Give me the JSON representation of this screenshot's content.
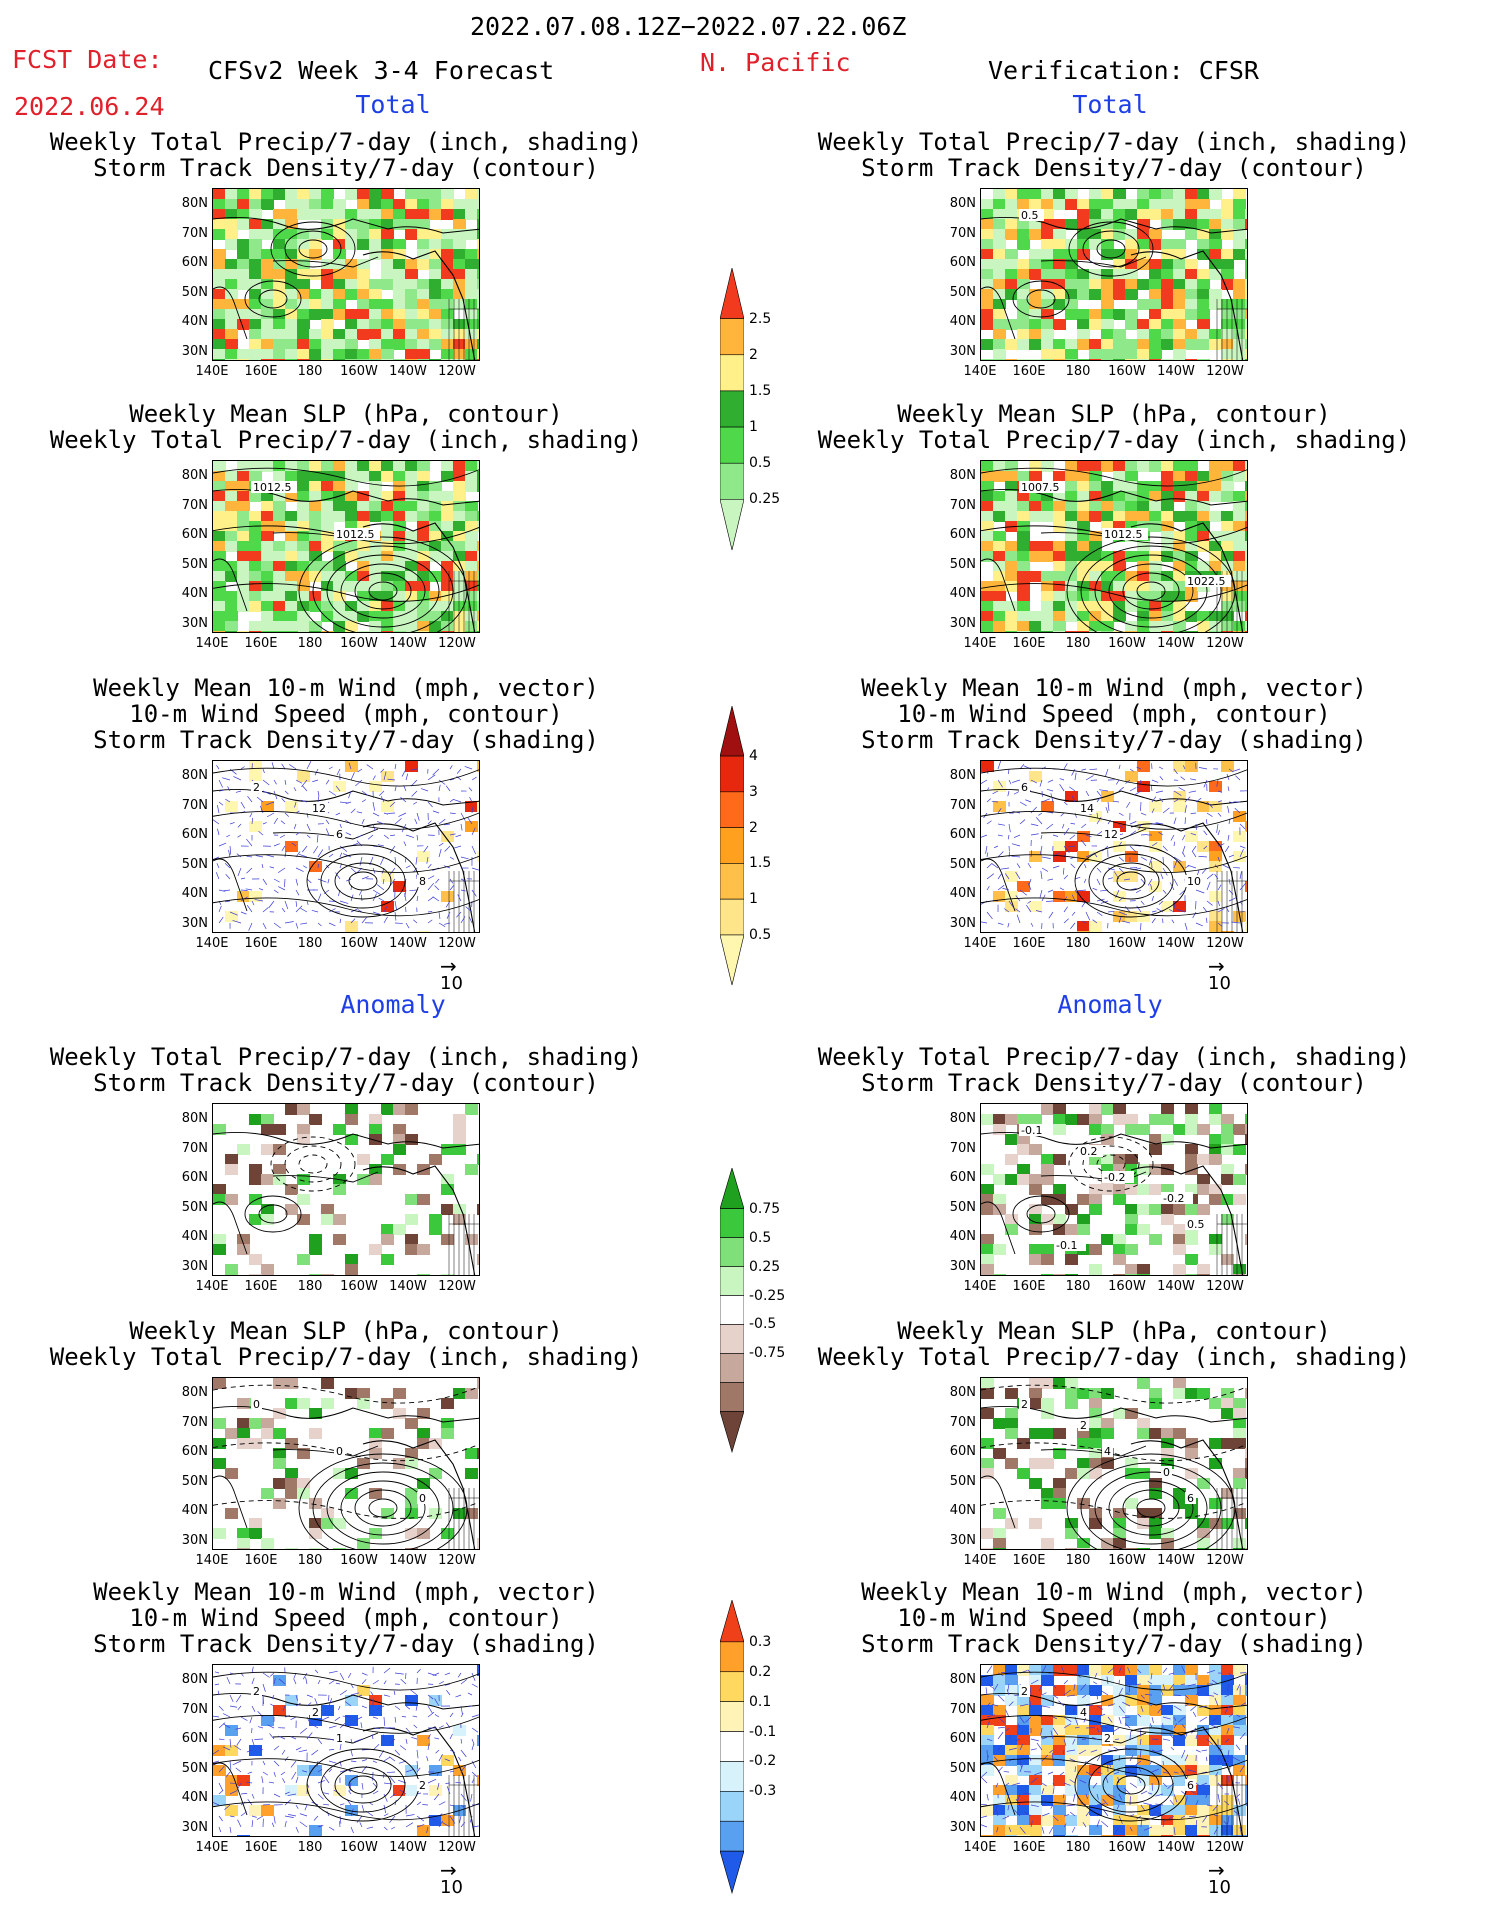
{
  "header": {
    "date_range": "2022.07.08.12Z−2022.07.22.06Z",
    "fcst_label": "FCST Date:",
    "fcst_date": "2022.06.24",
    "model_title": "CFSv2 Week 3-4 Forecast",
    "region": "N. Pacific",
    "verification": "Verification: CFSR"
  },
  "sections": {
    "total": "Total",
    "anomaly": "Anomaly"
  },
  "titles": {
    "p1a": "Weekly Total Precip/7-day (inch, shading)",
    "p1b": "Storm Track Density/7-day (contour)",
    "p2a": "Weekly Mean SLP (hPa, contour)",
    "p2b": "Weekly Total Precip/7-day (inch, shading)",
    "p3a": "Weekly Mean 10-m Wind (mph, vector)",
    "p3b": "10-m Wind Speed (mph, contour)",
    "p3c": "Storm Track Density/7-day (shading)"
  },
  "axes": {
    "lat_labels": [
      "80N",
      "70N",
      "60N",
      "50N",
      "40N",
      "30N"
    ],
    "lon_labels": [
      "140E",
      "160E",
      "180",
      "160W",
      "140W",
      "120W"
    ]
  },
  "contour_labels": {
    "fcst_slp_total": [
      "1012.5",
      "1012.5"
    ],
    "verif_track_total": [
      "0.5"
    ],
    "verif_slp_total": [
      "1007.5",
      "1012.5",
      "1022.5"
    ],
    "fcst_wind_total": [
      "2",
      "6",
      "8",
      "12"
    ],
    "verif_wind_total": [
      "6",
      "12",
      "10",
      "14"
    ],
    "verif_track_anom": [
      "-0.1",
      "-0.2",
      "0.5",
      "0.2",
      "-0.2",
      "-0.1"
    ],
    "fcst_slp_anom": [
      "0",
      "0",
      "0"
    ],
    "verif_slp_anom": [
      "2",
      "4",
      "6",
      "2",
      "0"
    ],
    "fcst_wind_anom": [
      "2",
      "1",
      "2",
      "2"
    ],
    "verif_wind_anom": [
      "2",
      "2",
      "6",
      "4"
    ]
  },
  "reference_vector": "10",
  "colorbars": {
    "precip_total": {
      "levels": [
        "0.25",
        "0.5",
        "1",
        "1.5",
        "2",
        "2.5"
      ],
      "colors": [
        "#c8f5c0",
        "#8fe88a",
        "#4fd84a",
        "#2fae2f",
        "#fff08a",
        "#ffb43c",
        "#f23a1e"
      ]
    },
    "track_total": {
      "levels": [
        "0.5",
        "1",
        "1.5",
        "2",
        "3",
        "4"
      ],
      "colors": [
        "#fff6b0",
        "#ffe58a",
        "#ffc04a",
        "#ffa01e",
        "#ff6a1a",
        "#e8280e",
        "#a01010"
      ]
    },
    "precip_anom": {
      "levels": [
        "-0.75",
        "-0.5",
        "-0.25",
        "0.25",
        "0.5",
        "0.75"
      ],
      "colors": [
        "#6e4438",
        "#a07868",
        "#c6a89c",
        "#e6d2ca",
        "#ffffff",
        "#c8f5c0",
        "#7fe07a",
        "#3cc83c",
        "#1fa01f"
      ]
    },
    "track_anom": {
      "levels": [
        "-0.3",
        "-0.2",
        "-0.1",
        "0.1",
        "0.2",
        "0.3"
      ],
      "colors": [
        "#1f5be8",
        "#5aa0f0",
        "#9ad4f8",
        "#d8f2fc",
        "#ffffff",
        "#fff3b8",
        "#ffd860",
        "#ffa02a",
        "#f0401a"
      ]
    }
  }
}
